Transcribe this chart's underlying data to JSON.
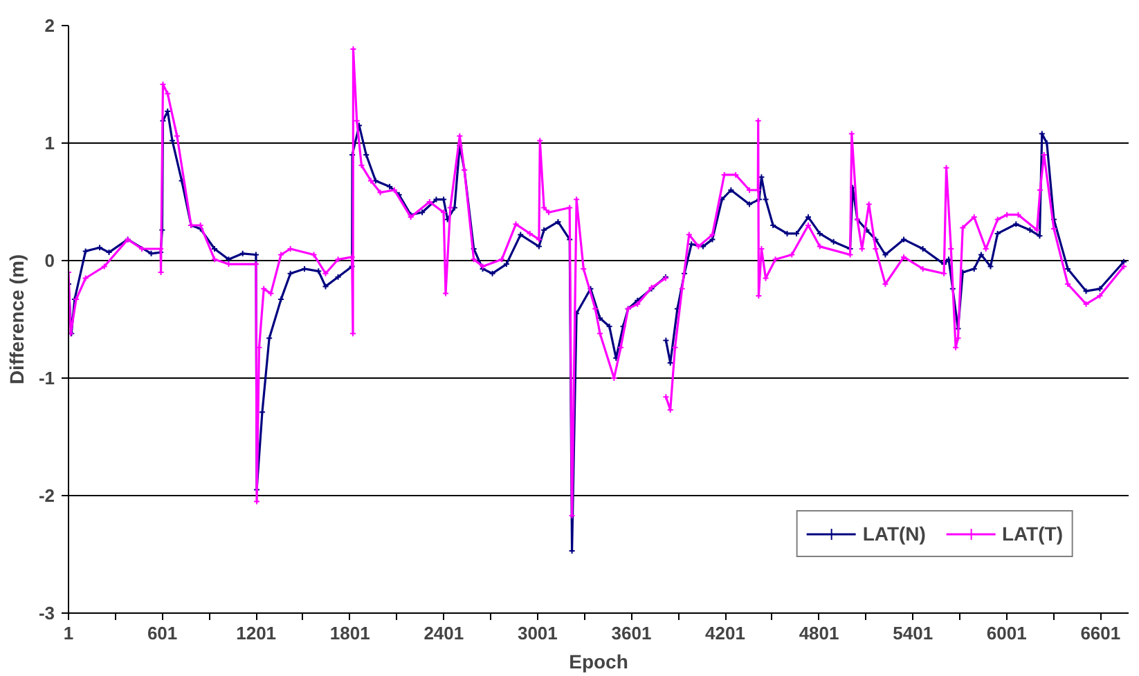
{
  "chart_data": {
    "type": "line",
    "xlabel": "Epoch",
    "ylabel": "Difference (m)",
    "xlim": [
      1,
      6781
    ],
    "ylim": [
      -3,
      2
    ],
    "xticks": [
      1,
      {
        "value": 301,
        "label": null
      },
      601,
      {
        "value": 901,
        "label": null
      },
      1201,
      {
        "value": 1501,
        "label": null
      },
      1801,
      {
        "value": 2101,
        "label": null
      },
      2401,
      {
        "value": 2701,
        "label": null
      },
      3001,
      {
        "value": 3301,
        "label": null
      },
      3601,
      {
        "value": 3901,
        "label": null
      },
      4201,
      {
        "value": 4501,
        "label": null
      },
      4801,
      {
        "value": 5101,
        "label": null
      },
      5401,
      {
        "value": 5701,
        "label": null
      },
      6001,
      {
        "value": 6301,
        "label": null
      },
      6601
    ],
    "yticks": [
      -3,
      -2,
      -1,
      0,
      1,
      2
    ],
    "grid": "y",
    "legend": "bottom right",
    "marker": "cross",
    "line_style": "solid",
    "series": [
      {
        "name": "LAT(N)",
        "color": "#000080",
        "x": [
          1,
          20,
          40,
          110,
          200,
          260,
          380,
          530,
          590,
          600,
          605,
          635,
          665,
          725,
          785,
          845,
          935,
          1025,
          1115,
          1200,
          1205,
          1240,
          1285,
          1360,
          1420,
          1510,
          1600,
          1645,
          1725,
          1814,
          1816,
          1860,
          1905,
          1965,
          2055,
          2115,
          2190,
          2263,
          2353,
          2400,
          2425,
          2470,
          2503,
          2533,
          2593,
          2650,
          2712,
          2802,
          2892,
          3010,
          3042,
          3132,
          3206,
          3221,
          3250,
          3340,
          3400,
          3460,
          3503,
          3548,
          3580,
          3640,
          3730,
          3820,
          3821,
          3822,
          3850,
          3895,
          3940,
          3985,
          4059,
          4119,
          4180,
          4238,
          4356,
          4418,
          4433,
          4460,
          4507,
          4597,
          4657,
          4732,
          4806,
          4894,
          5000,
          5016,
          5046,
          5106,
          5163,
          5225,
          5343,
          5465,
          5600,
          5630,
          5656,
          5690,
          5720,
          5793,
          5838,
          5898,
          5943,
          6061,
          6150,
          6212,
          6227,
          6258,
          6303,
          6392,
          6509,
          6597,
          6750
        ],
        "values": [
          -0.2,
          -0.62,
          -0.33,
          0.08,
          0.11,
          0.07,
          0.18,
          0.06,
          0.07,
          0.26,
          1.19,
          1.27,
          1.02,
          0.68,
          0.3,
          0.27,
          0.1,
          0.01,
          0.06,
          0.05,
          -1.95,
          -1.29,
          -0.66,
          -0.33,
          -0.11,
          -0.07,
          -0.09,
          -0.22,
          -0.14,
          -0.05,
          0.9,
          1.15,
          0.9,
          0.68,
          0.63,
          0.56,
          0.39,
          0.41,
          0.52,
          0.52,
          0.35,
          0.45,
          0.98,
          0.77,
          0.1,
          -0.07,
          -0.11,
          -0.03,
          0.22,
          0.12,
          0.26,
          0.33,
          0.18,
          -2.47,
          -0.45,
          -0.24,
          -0.49,
          -0.56,
          -0.83,
          -0.56,
          -0.41,
          -0.34,
          -0.24,
          -0.14,
          null,
          -0.68,
          -0.87,
          -0.41,
          -0.11,
          0.14,
          0.12,
          0.18,
          0.52,
          0.6,
          0.48,
          0.52,
          0.71,
          0.52,
          0.3,
          0.23,
          0.23,
          0.37,
          0.23,
          0.16,
          0.1,
          0.62,
          0.35,
          0.26,
          0.18,
          0.05,
          0.18,
          0.1,
          -0.03,
          0.01,
          -0.24,
          -0.58,
          -0.1,
          -0.07,
          0.05,
          -0.05,
          0.23,
          0.31,
          0.26,
          0.21,
          1.08,
          1.0,
          0.35,
          -0.07,
          -0.26,
          -0.24,
          -0.01
        ]
      },
      {
        "name": "LAT(T)",
        "color": "#ff00ff",
        "x": [
          1,
          15,
          50,
          110,
          230,
          380,
          470,
          590,
          592,
          605,
          635,
          695,
          785,
          845,
          935,
          1025,
          1200,
          1205,
          1220,
          1250,
          1295,
          1360,
          1420,
          1570,
          1645,
          1725,
          1814,
          1820,
          1822,
          1845,
          1875,
          1935,
          1995,
          2085,
          2190,
          2310,
          2400,
          2413,
          2443,
          2503,
          2533,
          2593,
          2650,
          2772,
          2862,
          2952,
          3010,
          3016,
          3042,
          3072,
          3206,
          3221,
          3250,
          3295,
          3370,
          3400,
          3490,
          3533,
          3580,
          3640,
          3730,
          3820,
          3821,
          3822,
          3850,
          3880,
          3925,
          3970,
          4030,
          4119,
          4195,
          4268,
          4356,
          4410,
          4412,
          4415,
          4433,
          4460,
          4522,
          4627,
          4732,
          4806,
          5000,
          5010,
          5046,
          5076,
          5120,
          5163,
          5225,
          5343,
          5465,
          5600,
          5615,
          5645,
          5675,
          5690,
          5720,
          5793,
          5868,
          5943,
          6003,
          6075,
          6195,
          6215,
          6240,
          6303,
          6392,
          6509,
          6597,
          6750
        ],
        "values": [
          -0.1,
          -0.62,
          -0.33,
          -0.15,
          -0.05,
          0.18,
          0.1,
          0.1,
          -0.1,
          1.5,
          1.42,
          1.06,
          0.3,
          0.3,
          0.01,
          -0.03,
          -0.03,
          -2.05,
          -0.74,
          -0.24,
          -0.28,
          0.05,
          0.1,
          0.05,
          -0.11,
          0.01,
          0.03,
          -0.62,
          1.8,
          1.19,
          0.81,
          0.68,
          0.58,
          0.6,
          0.37,
          0.5,
          0.41,
          -0.28,
          0.45,
          1.06,
          0.77,
          0.01,
          -0.05,
          0.01,
          0.31,
          0.23,
          0.18,
          1.02,
          0.45,
          0.41,
          0.45,
          -2.17,
          0.52,
          -0.07,
          -0.41,
          -0.62,
          -1.0,
          -0.74,
          -0.41,
          -0.37,
          -0.23,
          -0.15,
          null,
          -1.16,
          -1.27,
          -0.74,
          -0.24,
          0.22,
          0.12,
          0.22,
          0.73,
          0.73,
          0.6,
          0.6,
          1.19,
          -0.3,
          0.1,
          -0.15,
          0.01,
          0.05,
          0.3,
          0.12,
          0.05,
          1.08,
          0.35,
          0.1,
          0.48,
          0.1,
          -0.2,
          0.03,
          -0.07,
          -0.11,
          0.79,
          0.1,
          -0.74,
          -0.66,
          0.28,
          0.37,
          0.1,
          0.35,
          0.39,
          0.39,
          0.26,
          0.6,
          0.9,
          0.27,
          -0.2,
          -0.37,
          -0.3,
          -0.05
        ]
      }
    ]
  }
}
